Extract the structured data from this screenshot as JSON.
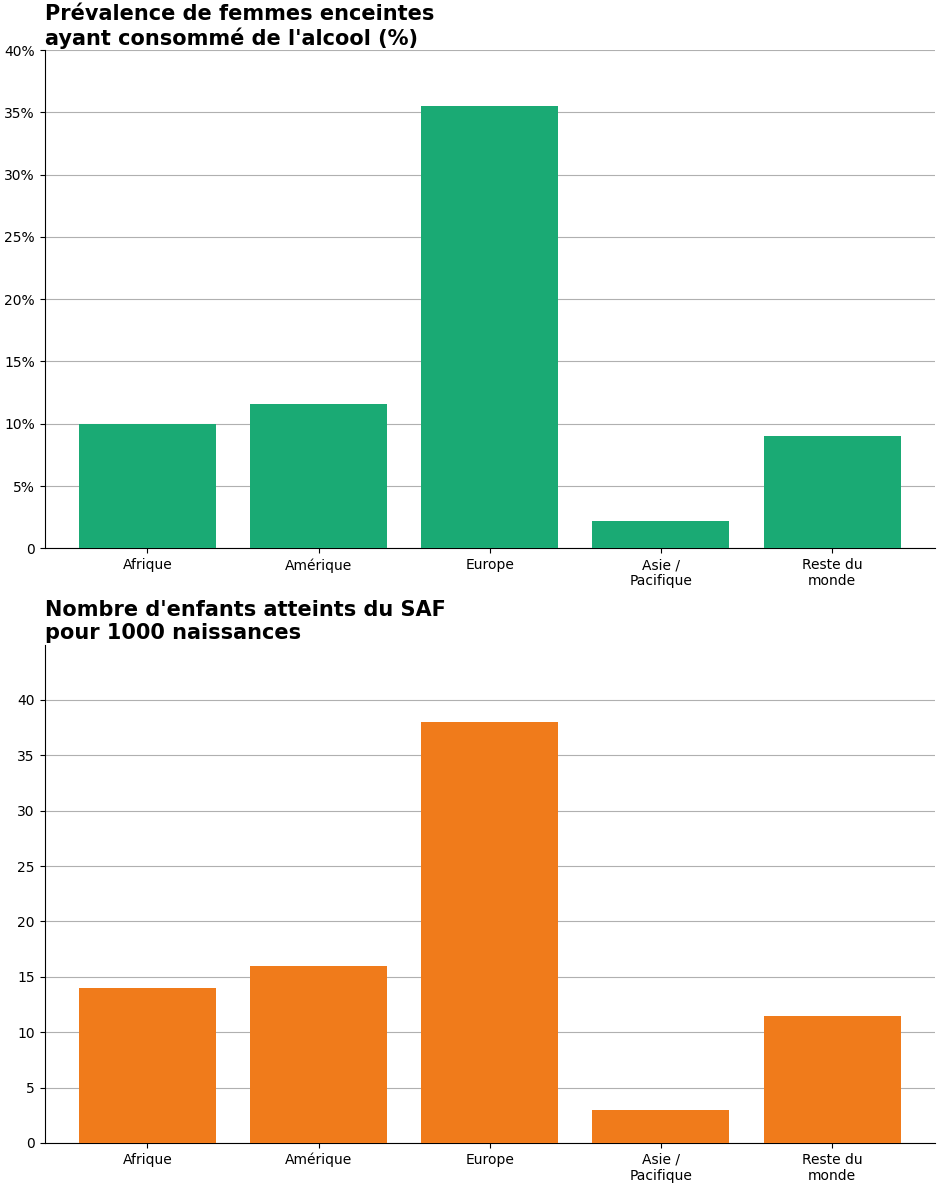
{
  "chart_data": [
    {
      "type": "bar",
      "title": "Prévalence de femmes enceintes\nayant consommé de l'alcool (%)",
      "categories": [
        "Afrique",
        "Amérique",
        "Europe",
        "Asie /\nPacifique",
        "Reste du\nmonde"
      ],
      "values": [
        10.0,
        11.6,
        35.5,
        2.2,
        9.0
      ],
      "color": "#1aaa74",
      "ylim": [
        0,
        40
      ],
      "yticks": [
        0,
        {
          "value": 5,
          "label": "5%"
        },
        {
          "value": 10,
          "label": "10%"
        },
        {
          "value": 15,
          "label": "15%"
        },
        {
          "value": 20,
          "label": "20%"
        },
        {
          "value": 25,
          "label": "25%"
        },
        {
          "value": 30,
          "label": "30%"
        },
        {
          "value": 35,
          "label": "35%"
        },
        {
          "value": 40,
          "label": "40%"
        }
      ],
      "grid": true
    },
    {
      "type": "bar",
      "title": "Nombre d'enfants atteints du SAF\npour 1000 naissances",
      "categories": [
        "Afrique",
        "Amérique",
        "Europe",
        "Asie /\nPacifique",
        "Reste du\nmonde"
      ],
      "values": [
        14.0,
        16.0,
        38.0,
        3.0,
        11.5
      ],
      "color": "#f07b1b",
      "ylim": [
        0,
        45
      ],
      "yticks": [
        0,
        5,
        10,
        15,
        20,
        25,
        30,
        35,
        40
      ],
      "grid": true
    }
  ]
}
